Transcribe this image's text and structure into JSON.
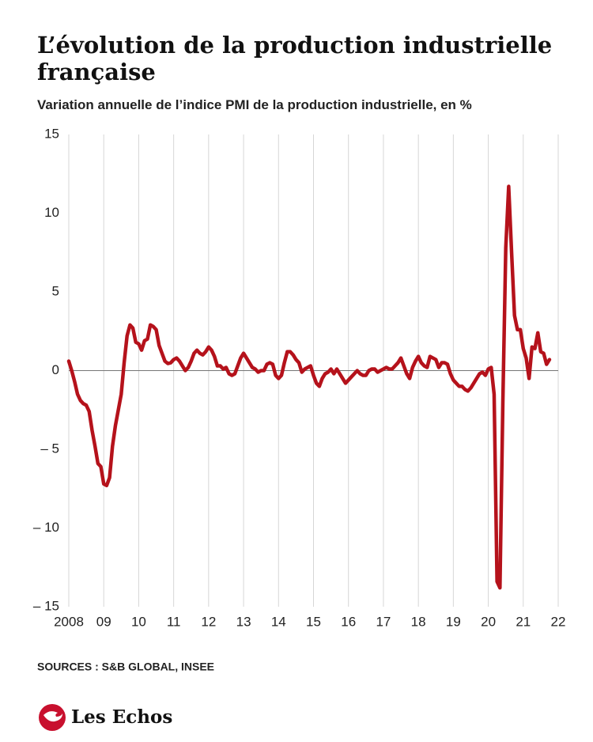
{
  "chart_data": {
    "type": "line",
    "title": "L’évolution de la production industrielle française",
    "subtitle": "Variation annuelle de l’indice PMI de la production industrielle, en %",
    "source": "SOURCES : S&B GLOBAL, INSEE",
    "brand": "Les Echos",
    "categories": [
      "2008",
      null,
      null,
      null,
      null,
      null,
      null,
      null,
      null,
      null,
      null,
      null,
      "09",
      null,
      null,
      null,
      null,
      null,
      null,
      null,
      null,
      null,
      null,
      null,
      "10",
      null,
      null,
      null,
      null,
      null,
      null,
      null,
      null,
      null,
      null,
      null,
      "11",
      null,
      null,
      null,
      null,
      null,
      null,
      null,
      null,
      null,
      null,
      null,
      "12",
      null,
      null,
      null,
      null,
      null,
      null,
      null,
      null,
      null,
      null,
      null,
      "13",
      null,
      null,
      null,
      null,
      null,
      null,
      null,
      null,
      null,
      null,
      null,
      "14",
      null,
      null,
      null,
      null,
      null,
      null,
      null,
      null,
      null,
      null,
      null,
      "15",
      null,
      null,
      null,
      null,
      null,
      null,
      null,
      null,
      null,
      null,
      null,
      "16",
      null,
      null,
      null,
      null,
      null,
      null,
      null,
      null,
      null,
      null,
      null,
      "17",
      null,
      null,
      null,
      null,
      null,
      null,
      null,
      null,
      null,
      null,
      null,
      "18",
      null,
      null,
      null,
      null,
      null,
      null,
      null,
      null,
      null,
      null,
      null,
      "19",
      null,
      null,
      null,
      null,
      null,
      null,
      null,
      null,
      null,
      null,
      null,
      "20",
      null,
      null,
      null,
      null,
      null,
      null,
      null,
      null,
      null,
      null,
      null,
      "21",
      null,
      null,
      null,
      null,
      null,
      null,
      null,
      null,
      null,
      null,
      null,
      "22"
    ],
    "series": [
      {
        "name": "PMI",
        "color": "#b5121b",
        "values": [
          0.6,
          0,
          -0.7,
          -1.5,
          -1.9,
          -2.1,
          -2.2,
          -2.6,
          -3.8,
          -4.8,
          -5.9,
          -6.1,
          -7.2,
          -7.3,
          -6.8,
          -4.8,
          -3.5,
          -2.5,
          -1.5,
          0.5,
          2.2,
          2.9,
          2.7,
          1.8,
          1.7,
          1.3,
          1.9,
          2.0,
          2.9,
          2.8,
          2.6,
          1.6,
          1.1,
          0.6,
          0.45,
          0.5,
          0.7,
          0.8,
          0.6,
          0.3,
          0.0,
          0.2,
          0.6,
          1.1,
          1.3,
          1.1,
          1.0,
          1.2,
          1.5,
          1.3,
          0.9,
          0.3,
          0.3,
          0.1,
          0.2,
          -0.2,
          -0.3,
          -0.2,
          0.3,
          0.8,
          1.1,
          0.8,
          0.5,
          0.2,
          0.1,
          -0.1,
          0.0,
          0.0,
          0.4,
          0.5,
          0.4,
          -0.3,
          -0.5,
          -0.3,
          0.5,
          1.2,
          1.2,
          1.0,
          0.7,
          0.5,
          -0.1,
          0.1,
          0.2,
          0.3,
          -0.3,
          -0.8,
          -1.0,
          -0.5,
          -0.2,
          -0.1,
          0.1,
          -0.2,
          0.1,
          -0.2,
          -0.5,
          -0.8,
          -0.6,
          -0.4,
          -0.2,
          0.0,
          -0.2,
          -0.3,
          -0.3,
          0.0,
          0.1,
          0.1,
          -0.1,
          0.0,
          0.1,
          0.2,
          0.1,
          0.1,
          0.3,
          0.5,
          0.8,
          0.3,
          -0.2,
          -0.5,
          0.2,
          0.6,
          0.9,
          0.5,
          0.3,
          0.2,
          0.9,
          0.8,
          0.7,
          0.2,
          0.5,
          0.5,
          0.4,
          -0.2,
          -0.6,
          -0.8,
          -1.0,
          -1.0,
          -1.2,
          -1.3,
          -1.1,
          -0.8,
          -0.5,
          -0.2,
          -0.1,
          -0.3,
          0.1,
          0.2,
          -1.5,
          -13.4,
          -13.8,
          -2.0,
          7.8,
          11.7,
          7.5,
          3.5,
          2.6,
          2.6,
          1.4,
          0.8,
          -0.5,
          1.5,
          1.4,
          2.4,
          1.2,
          1.1,
          0.4,
          0.7,
          null,
          null,
          null
        ]
      }
    ],
    "ylim": [
      -15,
      15
    ],
    "yticks": [
      15,
      10,
      5,
      0,
      {
        "value": -5,
        "label": "– 5"
      },
      {
        "value": -10,
        "label": "– 10"
      },
      {
        "value": -15,
        "label": "– 15"
      }
    ],
    "grid": true
  }
}
